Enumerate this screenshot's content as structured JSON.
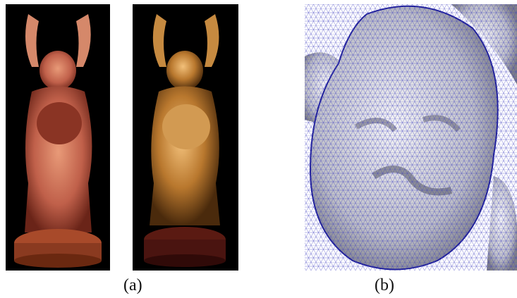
{
  "captions": {
    "a": "(a)",
    "b": "(b)"
  }
}
